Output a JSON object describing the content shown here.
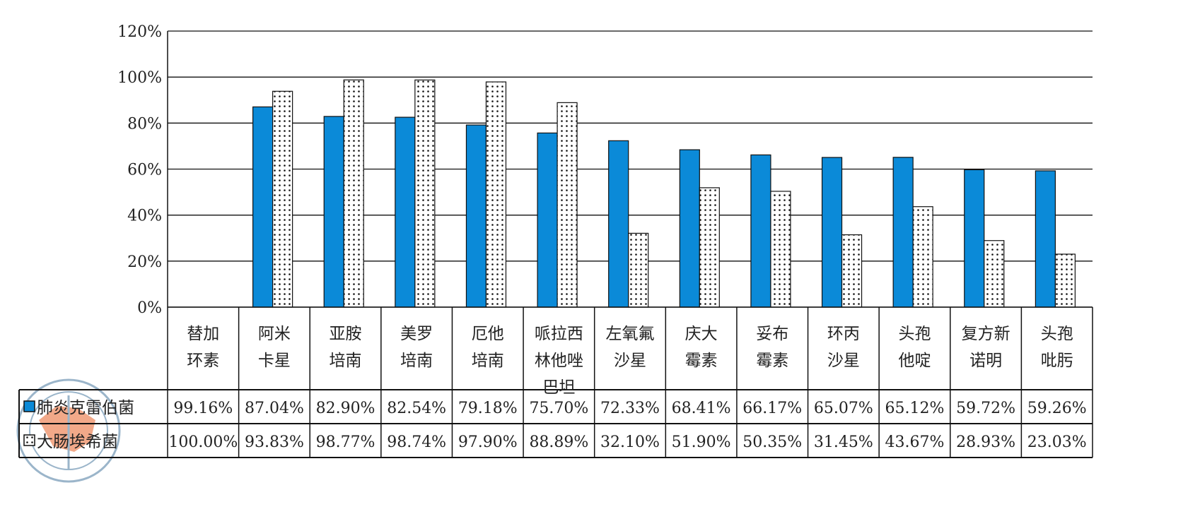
{
  "chart_data": {
    "type": "bar",
    "title": "",
    "xlabel": "",
    "ylabel": "",
    "ylim": [
      0,
      120
    ],
    "yticks": [
      "0%",
      "20%",
      "40%",
      "60%",
      "80%",
      "100%",
      "120%"
    ],
    "grid": true,
    "categories": [
      [
        "替加",
        "环素"
      ],
      [
        "阿米",
        "卡星"
      ],
      [
        "亚胺",
        "培南"
      ],
      [
        "美罗",
        "培南"
      ],
      [
        "厄他",
        "培南"
      ],
      [
        "哌拉西",
        "林他唑",
        "巴坦"
      ],
      [
        "左氧氟",
        "沙星"
      ],
      [
        "庆大",
        "霉素"
      ],
      [
        "妥布",
        "霉素"
      ],
      [
        "环丙",
        "沙星"
      ],
      [
        "头孢",
        "他啶"
      ],
      [
        "复方新",
        "诺明"
      ],
      [
        "头孢",
        "吡肟"
      ]
    ],
    "bars_not_drawn_for_categories": [
      0
    ],
    "series": [
      {
        "name": "肺炎克雷伯菌",
        "color": "#0b8ad8",
        "pattern": "solid",
        "values": [
          99.16,
          87.04,
          82.9,
          82.54,
          79.18,
          75.7,
          72.33,
          68.41,
          66.17,
          65.07,
          65.12,
          59.72,
          59.26
        ],
        "labels": [
          "99.16%",
          "87.04%",
          "82.90%",
          "82.54%",
          "79.18%",
          "75.70%",
          "72.33%",
          "68.41%",
          "66.17%",
          "65.07%",
          "65.12%",
          "59.72%",
          "59.26%"
        ]
      },
      {
        "name": "大肠埃希菌",
        "color": "#ffffff",
        "pattern": "dotted",
        "values": [
          100.0,
          93.83,
          98.77,
          98.74,
          97.9,
          88.89,
          32.1,
          51.9,
          50.35,
          31.45,
          43.67,
          28.93,
          23.03
        ],
        "labels": [
          "100.00%",
          "93.83%",
          "98.77%",
          "98.74%",
          "97.90%",
          "88.89%",
          "32.10%",
          "51.90%",
          "50.35%",
          "31.45%",
          "43.67%",
          "28.93%",
          "23.03%"
        ]
      }
    ],
    "legend": "left-of-table"
  }
}
